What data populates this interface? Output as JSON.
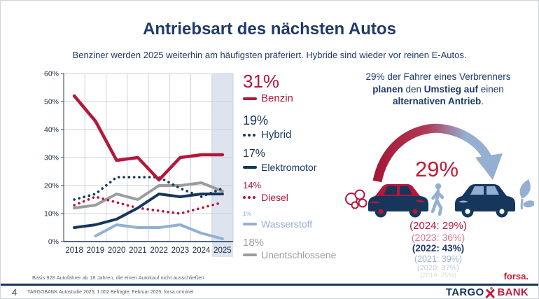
{
  "slide": {
    "title": "Antriebsart des nächsten Autos",
    "subtitle": "Benziner werden 2025 weiterhin am häufigsten präferiert. Hybride sind wieder vor reinen E-Autos.",
    "basis_note": "Basis 928 Autofahrer ab 18 Jahren, die einen Autokauf nicht ausschließen",
    "source_note": "TARGOBANK Autostudie 2025; 1.002 Befragte; Februar 2025; forsa.omninet",
    "page_number": "4",
    "forsa_logo": "forsa.",
    "logo": {
      "targo": "TARGO",
      "bank": "BANK"
    }
  },
  "colors": {
    "red": "#B5173A",
    "navy": "#1F3A68",
    "line_navy": "#16365C",
    "light_blue": "#94AFD2",
    "gray": "#9C9C9C",
    "band": "#DDE3EF",
    "grid": "#C8D2DF",
    "axis": "#4d6075",
    "tick_text": "#1e2a38"
  },
  "chart_data": {
    "type": "line",
    "title": "",
    "xlabel": "",
    "ylabel": "",
    "ylim": [
      0,
      60
    ],
    "grid": true,
    "legend_position": "right",
    "highlight_year": "2025",
    "x_labels": [
      "2018",
      "2019",
      "2020",
      "2021",
      "2022",
      "2023",
      "2024",
      "2025"
    ],
    "y_ticks": [
      "0%",
      "10%",
      "20%",
      "30%",
      "40%",
      "50%",
      "60%"
    ],
    "series": [
      {
        "name": "Benzin",
        "current": "31%",
        "style": "solid",
        "color": "#B5173A",
        "width": 4.5,
        "values": [
          52,
          43,
          29,
          30,
          22,
          30,
          31,
          31
        ]
      },
      {
        "name": "Hybrid",
        "current": "19%",
        "style": "dotted",
        "color": "#16365C",
        "width": 3.6,
        "values": [
          15,
          17,
          23,
          23,
          23,
          19,
          16,
          19
        ]
      },
      {
        "name": "Elektromotor",
        "current": "17%",
        "style": "solid",
        "color": "#16365C",
        "width": 4,
        "values": [
          5,
          6,
          8,
          12,
          17,
          16,
          17,
          17
        ]
      },
      {
        "name": "Diesel",
        "current": "14%",
        "style": "dotted",
        "color": "#B5173A",
        "width": 3.6,
        "values": [
          13,
          16,
          14,
          12,
          11,
          10,
          12,
          14
        ]
      },
      {
        "name": "Wasserstoff",
        "current": "1%",
        "style": "solid",
        "color": "#94AFD2",
        "width": 4,
        "values": [
          null,
          2,
          6,
          5,
          5,
          6,
          3,
          1
        ]
      },
      {
        "name": "Unentschlossene",
        "current": "18%",
        "style": "solid",
        "color": "#9C9C9C",
        "width": 4,
        "values": [
          12,
          13,
          17,
          15,
          20,
          20,
          21,
          18
        ]
      }
    ]
  },
  "right_panel": {
    "headline_parts": [
      {
        "text": "29% der Fahrer eines Verbrenners ",
        "bold": false
      },
      {
        "text": "planen",
        "bold": true
      },
      {
        "text": " den ",
        "bold": false
      },
      {
        "text": "Umstieg auf",
        "bold": true
      },
      {
        "text": " einen ",
        "bold": false
      },
      {
        "text": "alternativen Antrieb",
        "bold": true
      },
      {
        "text": ".",
        "bold": false
      }
    ],
    "arrow_value": "29%",
    "history": [
      {
        "text": "(2024: 29%)",
        "color": "#B5173A"
      },
      {
        "text": "(2023: 36%)",
        "color": "#D8758D"
      },
      {
        "text": "(2022: 43%)",
        "color": "#1F3A68"
      },
      {
        "text": "(2021: 39%)",
        "color": "#9FB3CD"
      },
      {
        "text": "(2020: 37%)",
        "color": "#BECBDC"
      },
      {
        "text": "(2019: 25%)",
        "color": "#D4DCE8"
      }
    ]
  }
}
